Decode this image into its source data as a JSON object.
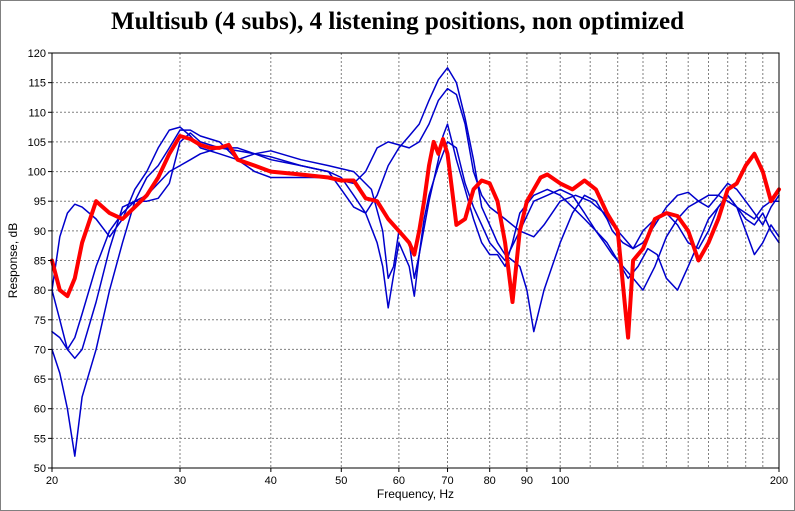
{
  "chart_data": {
    "type": "line",
    "title": "Multisub (4 subs), 4 listening positions, non optimized",
    "xlabel": "Frequency, Hz",
    "ylabel": "Response, dB",
    "xscale": "log",
    "xlim": [
      20,
      200
    ],
    "ylim": [
      50,
      120
    ],
    "xticks": [
      20,
      30,
      40,
      50,
      60,
      70,
      80,
      90,
      100,
      200
    ],
    "yticks": [
      50,
      55,
      60,
      65,
      70,
      75,
      80,
      85,
      90,
      95,
      100,
      105,
      110,
      115,
      120
    ],
    "grid": true,
    "colors": {
      "positions": "#0000cc",
      "average": "#ff0000",
      "grid": "#808080",
      "background": "#ffffff"
    },
    "series": [
      {
        "color": "#0000cc",
        "width": 1.5,
        "x": [
          20,
          20.5,
          21,
          21.5,
          22,
          23,
          24,
          25,
          26,
          27,
          28,
          29,
          30,
          31,
          32,
          34,
          36,
          38,
          40,
          44,
          48,
          52,
          55,
          57,
          58,
          59,
          60,
          62,
          63,
          64,
          65,
          66,
          68,
          70,
          72,
          74,
          76,
          78,
          80,
          84,
          88,
          92,
          96,
          100,
          104,
          108,
          112,
          115,
          118,
          122,
          126,
          130,
          135,
          140,
          145,
          150,
          155,
          160,
          165,
          170,
          175,
          180,
          185,
          190,
          195,
          200
        ],
        "y": [
          80,
          89,
          93,
          94.5,
          94,
          92,
          89,
          92,
          97,
          100,
          104,
          107,
          107.5,
          106,
          104,
          103,
          102,
          103,
          103.5,
          102,
          101,
          100,
          97,
          90,
          82,
          84,
          90,
          88,
          82,
          86,
          92,
          96,
          101,
          105,
          104,
          98,
          94,
          91,
          88,
          85,
          90,
          95,
          96,
          97,
          96,
          93,
          90,
          88,
          86,
          84,
          82,
          80,
          84,
          89,
          92,
          94,
          95,
          96,
          96,
          95,
          94,
          93,
          92,
          94,
          95,
          95
        ]
      },
      {
        "color": "#0000cc",
        "width": 1.5,
        "x": [
          20,
          20.5,
          21,
          21.5,
          22,
          23,
          24,
          25,
          26,
          27,
          28,
          29,
          30,
          31,
          32,
          34,
          36,
          38,
          40,
          44,
          48,
          50,
          52,
          54,
          56,
          58,
          60,
          62,
          64,
          66,
          68,
          70,
          72,
          74,
          76,
          78,
          80,
          82,
          84,
          86,
          88,
          90,
          92,
          95,
          100,
          104,
          108,
          112,
          116,
          118,
          122,
          126,
          130,
          135,
          140,
          145,
          150,
          155,
          160,
          165,
          170,
          175,
          180,
          185,
          190,
          195,
          200
        ],
        "y": [
          73,
          72,
          70,
          68.5,
          70,
          78,
          87,
          94,
          95,
          95,
          95.5,
          98,
          105,
          106.5,
          105,
          104,
          103.5,
          103,
          102.5,
          101,
          100,
          97,
          94,
          93,
          96,
          101,
          104,
          106,
          108,
          112,
          115.5,
          117.5,
          115,
          109,
          102,
          94,
          91,
          88,
          86,
          85,
          84,
          80,
          73,
          80,
          88,
          93,
          96,
          95,
          92,
          90,
          88,
          87,
          90,
          92,
          93,
          91,
          88,
          87,
          90,
          94,
          96,
          94,
          92,
          91,
          93,
          90,
          88
        ]
      },
      {
        "color": "#0000cc",
        "width": 1.5,
        "x": [
          20,
          20.5,
          21,
          21.5,
          22,
          23,
          24,
          25,
          26,
          27,
          28,
          29,
          30,
          31,
          32,
          34,
          36,
          38,
          40,
          44,
          48,
          52,
          54,
          56,
          58,
          60,
          62,
          64,
          66,
          68,
          70,
          72,
          74,
          76,
          78,
          80,
          84,
          88,
          92,
          95,
          100,
          105,
          110,
          115,
          118,
          122,
          126,
          130,
          135,
          140,
          145,
          150,
          155,
          160,
          165,
          170,
          175,
          180,
          185,
          190,
          195,
          200
        ],
        "y": [
          70,
          66,
          60,
          52,
          62,
          70,
          80,
          88,
          95,
          99,
          101,
          104,
          107,
          107,
          106,
          105,
          102,
          100,
          99,
          99,
          99,
          98,
          100,
          104,
          105,
          104.5,
          104,
          105,
          108,
          112,
          114,
          113,
          108,
          100,
          96,
          94,
          92,
          90,
          89,
          91,
          95,
          96,
          95,
          93,
          91,
          89,
          87,
          88,
          91,
          94,
          96,
          96.5,
          95,
          94,
          96,
          98,
          97,
          95,
          93,
          91,
          94,
          96
        ]
      },
      {
        "color": "#0000cc",
        "width": 1.5,
        "x": [
          20,
          20.5,
          21,
          21.5,
          22,
          23,
          24,
          25,
          26,
          27,
          28,
          29,
          30,
          31,
          32,
          34,
          36,
          38,
          40,
          44,
          48,
          50,
          52,
          54,
          56,
          57,
          58,
          60,
          62,
          63,
          64,
          66,
          68,
          69,
          70,
          71,
          72,
          74,
          76,
          78,
          80,
          82,
          84,
          86,
          88,
          92,
          96,
          100,
          104,
          108,
          112,
          116,
          120,
          124,
          128,
          132,
          136,
          140,
          145,
          150,
          155,
          160,
          165,
          170,
          175,
          180,
          185,
          190,
          195,
          200
        ],
        "y": [
          80,
          75,
          70,
          72,
          76,
          84,
          90,
          93,
          95,
          96,
          98,
          100,
          101,
          102,
          103,
          104,
          104,
          103,
          102,
          101,
          100,
          99,
          96,
          93,
          88,
          84,
          77,
          88,
          84,
          79,
          86,
          95,
          102,
          106,
          108,
          105,
          102,
          97,
          92,
          88,
          86,
          86,
          84,
          88,
          93,
          96,
          97,
          96,
          94,
          92,
          90,
          88,
          85,
          82,
          84,
          87,
          86,
          82,
          80,
          84,
          88,
          92,
          94,
          96,
          94,
          90,
          86,
          88,
          91,
          89
        ]
      },
      {
        "color": "#ff0000",
        "width": 4,
        "x": [
          20,
          20.5,
          21,
          21.5,
          22,
          23,
          24,
          25,
          26,
          27,
          28,
          29,
          30,
          31,
          32,
          33,
          34,
          35,
          36,
          38,
          40,
          44,
          48,
          50,
          52,
          54,
          56,
          58,
          60,
          62,
          63,
          64,
          65,
          66,
          67,
          68,
          69,
          70,
          71,
          72,
          74,
          76,
          78,
          80,
          82,
          84,
          86,
          88,
          90,
          92,
          94,
          96,
          100,
          104,
          108,
          112,
          116,
          120,
          124,
          126,
          130,
          135,
          140,
          145,
          150,
          155,
          160,
          165,
          170,
          175,
          180,
          185,
          190,
          195,
          200
        ],
        "y": [
          85,
          80,
          79,
          82,
          88,
          95,
          93,
          92,
          94,
          96,
          99,
          103,
          106,
          105.5,
          104.5,
          104,
          104,
          104.5,
          102,
          101,
          100,
          99.5,
          99,
          98.5,
          98.5,
          95.5,
          95,
          92,
          90,
          88,
          86,
          90,
          95,
          101,
          105,
          103,
          105.5,
          103,
          97,
          91,
          92,
          97,
          98.5,
          98,
          95,
          88,
          78,
          90,
          95,
          97,
          99,
          99.5,
          98,
          97,
          98.5,
          97,
          93,
          90,
          72,
          85,
          87,
          92,
          93,
          92.5,
          90,
          85,
          88,
          92,
          97,
          98,
          101,
          103,
          100,
          95,
          97
        ]
      }
    ]
  }
}
